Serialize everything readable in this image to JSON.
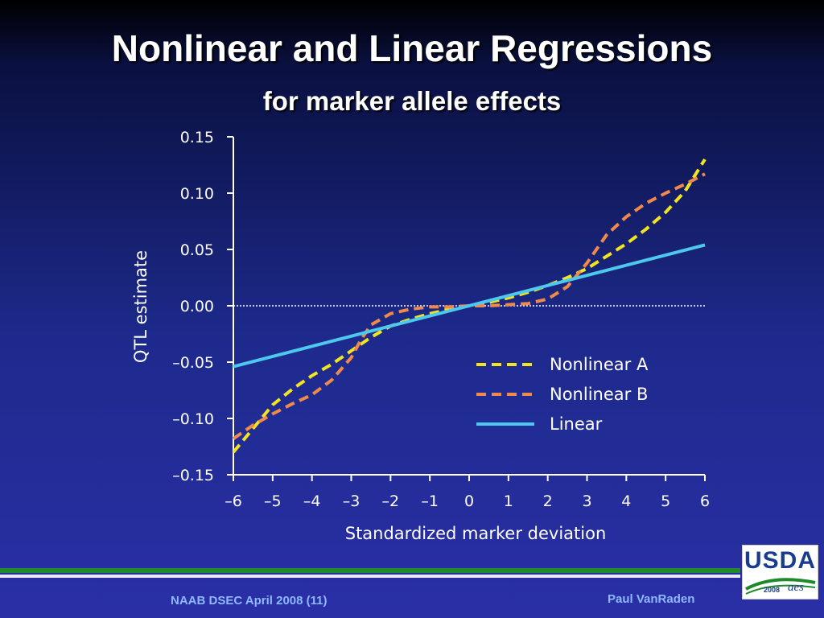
{
  "slide": {
    "title": "Nonlinear and Linear Regressions",
    "subtitle": "for marker allele effects",
    "footer_left": "NAAB DSEC April 2008 (11)",
    "footer_right": "Paul VanRaden",
    "logo_text": "USDA",
    "logo_year": "2008",
    "logo_mark": "aes"
  },
  "colors": {
    "nonlinear_a": "#f2e41e",
    "nonlinear_b": "#f08a4b",
    "linear": "#4dc8ee",
    "axis": "#ffffff"
  },
  "chart_data": {
    "type": "line",
    "xlabel": "Standardized marker deviation",
    "ylabel": "QTL estimate",
    "xlim": [
      -6,
      6
    ],
    "ylim": [
      -0.15,
      0.15
    ],
    "x_ticks": [
      -6,
      -5,
      -4,
      -3,
      -2,
      -1,
      0,
      1,
      2,
      3,
      4,
      5,
      6
    ],
    "x_tick_labels": [
      "–6",
      "–5",
      "–4",
      "–3",
      "–2",
      "–1",
      "0",
      "1",
      "2",
      "3",
      "4",
      "5",
      "6"
    ],
    "y_ticks": [
      0.15,
      0.1,
      0.05,
      0.0,
      -0.05,
      -0.1,
      -0.15
    ],
    "y_tick_labels": [
      "0.15",
      "0.10",
      "0.05",
      "0.00",
      "–0.05",
      "–0.10",
      "–0.15"
    ],
    "zero_reference_line": true,
    "legend_position": "center-right",
    "series": [
      {
        "name": "Nonlinear A",
        "style": "dashed",
        "x": [
          -6,
          -5.5,
          -5,
          -4.5,
          -4,
          -3.5,
          -3,
          -2.5,
          -2,
          -1.5,
          -1,
          -0.5,
          0,
          0.5,
          1,
          1.5,
          2,
          2.5,
          3,
          3.5,
          4,
          4.5,
          5,
          5.5,
          6
        ],
        "y": [
          -0.13,
          -0.109,
          -0.088,
          -0.074,
          -0.062,
          -0.052,
          -0.04,
          -0.028,
          -0.018,
          -0.012,
          -0.007,
          -0.003,
          0.0,
          0.003,
          0.007,
          0.012,
          0.018,
          0.025,
          0.033,
          0.044,
          0.055,
          0.068,
          0.083,
          0.102,
          0.13
        ]
      },
      {
        "name": "Nonlinear B",
        "style": "dashed",
        "x": [
          -6,
          -5.5,
          -5,
          -4.5,
          -4,
          -3.5,
          -3,
          -2.75,
          -2.5,
          -2,
          -1.5,
          -1,
          -0.5,
          0,
          0.5,
          1,
          1.5,
          2,
          2.5,
          3,
          3.5,
          4,
          4.5,
          5,
          5.5,
          6
        ],
        "y": [
          -0.118,
          -0.106,
          -0.096,
          -0.087,
          -0.079,
          -0.066,
          -0.046,
          -0.03,
          -0.017,
          -0.007,
          -0.003,
          -0.001,
          -0.001,
          0.0,
          0.0,
          0.001,
          0.002,
          0.006,
          0.017,
          0.038,
          0.063,
          0.079,
          0.091,
          0.1,
          0.108,
          0.117
        ]
      },
      {
        "name": "Linear",
        "style": "solid",
        "x": [
          -6,
          6
        ],
        "y": [
          -0.054,
          0.054
        ]
      }
    ]
  }
}
